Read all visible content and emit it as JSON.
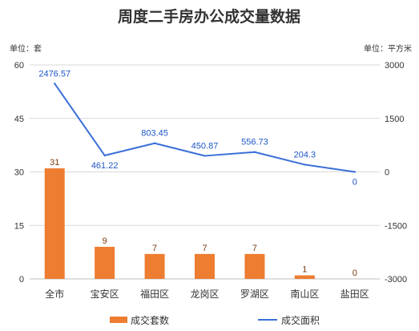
{
  "chart_data": {
    "type": "bar+line",
    "title": "周度二手房办公成交量数据",
    "left_unit": "单位：套",
    "right_unit": "单位：平方米",
    "categories": [
      "全市",
      "宝安区",
      "福田区",
      "龙岗区",
      "罗湖区",
      "南山区",
      "盐田区"
    ],
    "y_left": {
      "min": 0,
      "max": 60,
      "ticks": [
        0,
        15,
        30,
        45,
        60
      ]
    },
    "y_right": {
      "min": -3000,
      "max": 3000,
      "ticks": [
        -3000,
        -1500,
        0,
        1500,
        3000
      ]
    },
    "grid": true,
    "legend_position": "bottom",
    "series": [
      {
        "name": "成交套数",
        "type": "bar",
        "axis": "left",
        "color": "#ed7d31",
        "values": [
          31,
          9,
          7,
          7,
          7,
          1,
          0
        ],
        "labels": [
          "31",
          "9",
          "7",
          "7",
          "7",
          "1",
          "0"
        ]
      },
      {
        "name": "成交面积",
        "type": "line",
        "axis": "right",
        "color": "#3a6fd8",
        "values": [
          2476.57,
          461.22,
          803.45,
          450.87,
          556.73,
          204.3,
          0
        ],
        "labels": [
          "2476.57",
          "461.22",
          "803.45",
          "450.87",
          "556.73",
          "204.3",
          "0"
        ]
      }
    ]
  }
}
